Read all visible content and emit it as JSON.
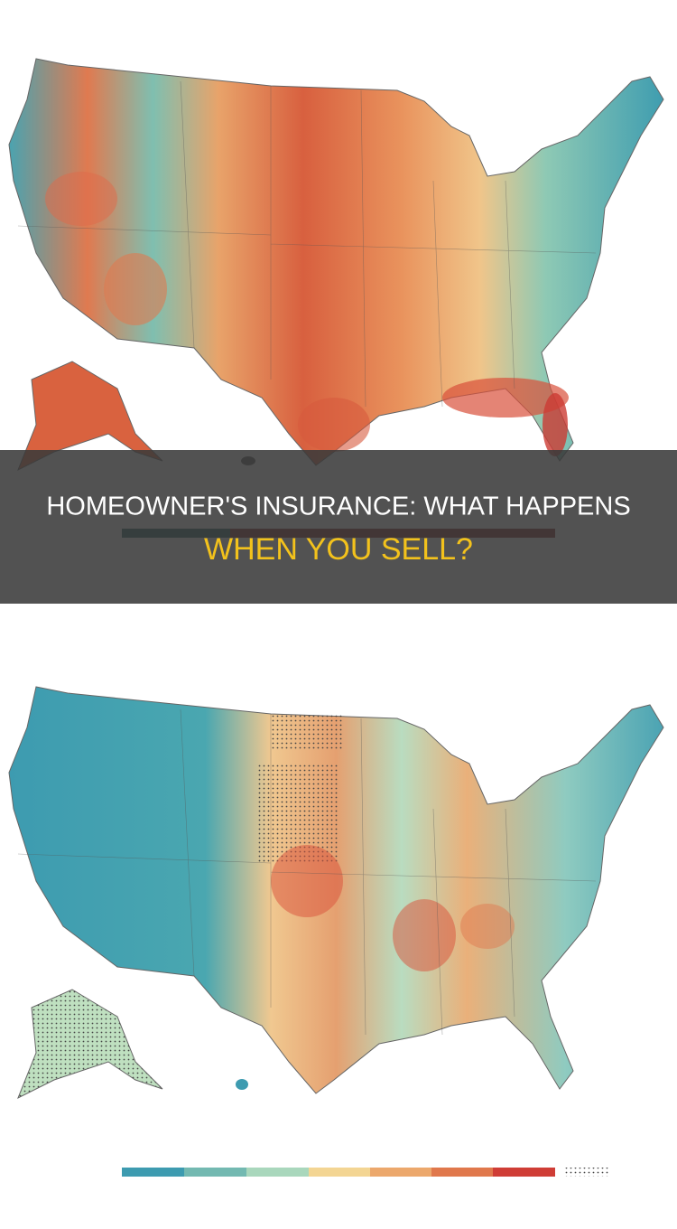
{
  "banner": {
    "title_line1": "HOMEOWNER'S INSURANCE: WHAT HAPPENS",
    "title_line2": "WHEN YOU SELL?"
  }
}
